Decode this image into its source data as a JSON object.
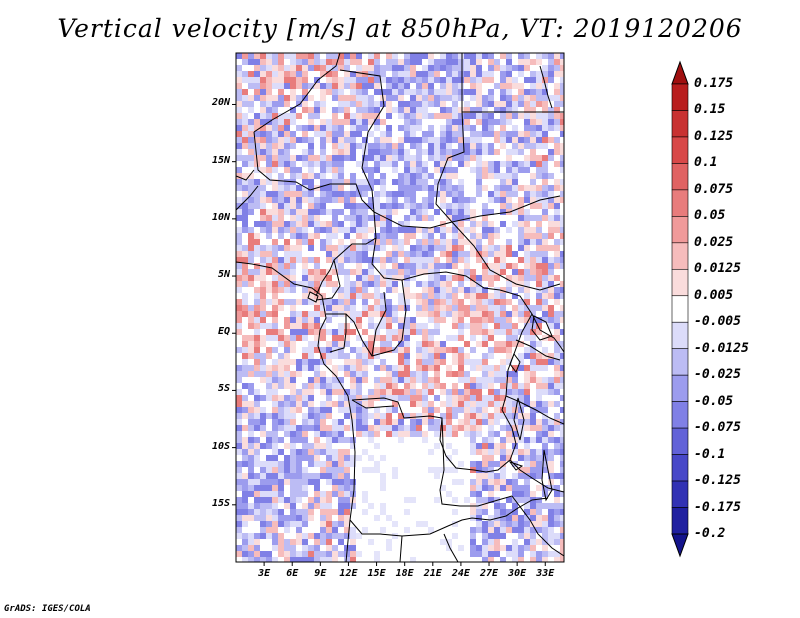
{
  "title": "Vertical velocity [m/s] at 850hPa, VT: 2019120206",
  "footer": "GrADS: IGES/COLA",
  "map": {
    "lat_labels": [
      "20N",
      "15N",
      "10N",
      "5N",
      "EQ",
      "5S",
      "10S",
      "15S"
    ],
    "lon_labels": [
      "3E",
      "6E",
      "9E",
      "12E",
      "15E",
      "18E",
      "21E",
      "24E",
      "27E",
      "30E",
      "33E"
    ],
    "lat_range": [
      -20,
      24.5
    ],
    "lon_range": [
      0,
      35
    ],
    "field": "vertical velocity at 850hPa"
  },
  "colorbar": {
    "labels": [
      "0.175",
      "0.15",
      "0.125",
      "0.1",
      "0.075",
      "0.05",
      "0.025",
      "0.0125",
      "0.005",
      "-0.005",
      "-0.0125",
      "-0.025",
      "-0.05",
      "-0.075",
      "-0.1",
      "-0.125",
      "-0.175",
      "-0.2"
    ],
    "colors": [
      "#a01010",
      "#b81e1e",
      "#c83232",
      "#d84848",
      "#e06262",
      "#e87c7c",
      "#f09a9a",
      "#f6bcbc",
      "#fadcdc",
      "#ffffff",
      "#dcdcfa",
      "#bcbcf4",
      "#9c9cee",
      "#8080e6",
      "#6262d8",
      "#4848c8",
      "#3232b4",
      "#2020a0",
      "#14148c"
    ]
  }
}
